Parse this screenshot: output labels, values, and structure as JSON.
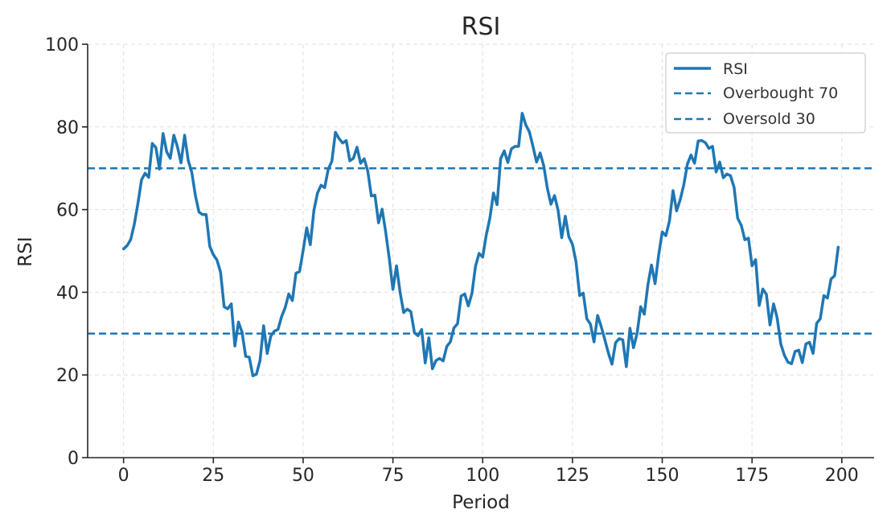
{
  "chart_data": {
    "type": "line",
    "title": "RSI",
    "xlabel": "Period",
    "ylabel": "RSI",
    "xlim": [
      -10,
      209
    ],
    "ylim": [
      0,
      100
    ],
    "xticks": [
      0,
      25,
      50,
      75,
      100,
      125,
      150,
      175,
      200
    ],
    "yticks": [
      0,
      20,
      40,
      60,
      80,
      100
    ],
    "grid": true,
    "legend_position": "top-right",
    "series": [
      {
        "name": "RSI",
        "style": "solid",
        "color": "#1f77b4",
        "x_start": 0,
        "x_step": 1,
        "values": [
          50.5,
          51.3,
          52.8,
          56.5,
          61.5,
          67.2,
          68.8,
          67.8,
          76.0,
          75.0,
          69.8,
          78.4,
          74.0,
          72.4,
          78.0,
          75.2,
          71.3,
          78.0,
          71.9,
          69.0,
          63.4,
          59.4,
          58.8,
          58.8,
          51.1,
          49.1,
          47.8,
          44.9,
          36.5,
          36.0,
          37.2,
          27.0,
          32.8,
          30.3,
          24.5,
          24.3,
          19.8,
          20.2,
          23.5,
          31.9,
          25.2,
          29.4,
          30.6,
          31.0,
          34.1,
          36.3,
          39.6,
          38.0,
          44.6,
          45.0,
          50.1,
          55.6,
          51.5,
          59.8,
          64.0,
          65.9,
          65.3,
          69.8,
          71.7,
          78.7,
          77.2,
          76.1,
          76.7,
          71.8,
          72.4,
          75.1,
          71.2,
          72.3,
          69.3,
          63.3,
          63.5,
          56.8,
          60.1,
          54.5,
          48.1,
          40.7,
          46.4,
          40.0,
          35.1,
          35.9,
          35.3,
          30.2,
          29.5,
          31.0,
          22.9,
          29.0,
          21.5,
          23.5,
          24.0,
          23.4,
          26.9,
          28.0,
          31.4,
          32.4,
          39.1,
          39.6,
          36.7,
          39.7,
          46.3,
          49.4,
          48.5,
          53.9,
          57.9,
          64.0,
          61.2,
          72.3,
          74.2,
          71.4,
          74.7,
          75.3,
          75.3,
          83.3,
          80.5,
          78.8,
          75.3,
          71.5,
          73.7,
          70.6,
          65.2,
          61.3,
          63.4,
          59.8,
          53.2,
          58.4,
          53.4,
          51.6,
          47.3,
          39.2,
          39.8,
          33.6,
          32.3,
          28.0,
          34.4,
          31.7,
          28.6,
          25.3,
          22.6,
          27.8,
          28.8,
          28.5,
          22.0,
          31.3,
          26.6,
          30.1,
          36.5,
          34.7,
          41.8,
          46.6,
          42.1,
          49.0,
          54.6,
          53.7,
          57.2,
          64.6,
          59.7,
          62.4,
          66.0,
          71.0,
          73.2,
          71.2,
          76.6,
          76.7,
          76.2,
          74.8,
          75.3,
          69.1,
          71.5,
          67.7,
          68.6,
          68.2,
          65.4,
          57.9,
          56.2,
          52.7,
          53.1,
          46.4,
          47.9,
          36.8,
          40.8,
          39.5,
          32.1,
          37.2,
          33.8,
          27.5,
          24.8,
          23.1,
          22.7,
          25.7,
          26.0,
          23.0,
          27.5,
          27.9,
          25.2,
          32.5,
          33.6,
          39.2,
          38.6,
          43.2,
          44.0,
          50.9
        ]
      },
      {
        "name": "Overbought 70",
        "style": "dashed",
        "color": "#1f77b4",
        "constant": 70
      },
      {
        "name": "Oversold 30",
        "style": "dashed",
        "color": "#1f77b4",
        "constant": 30
      }
    ]
  }
}
